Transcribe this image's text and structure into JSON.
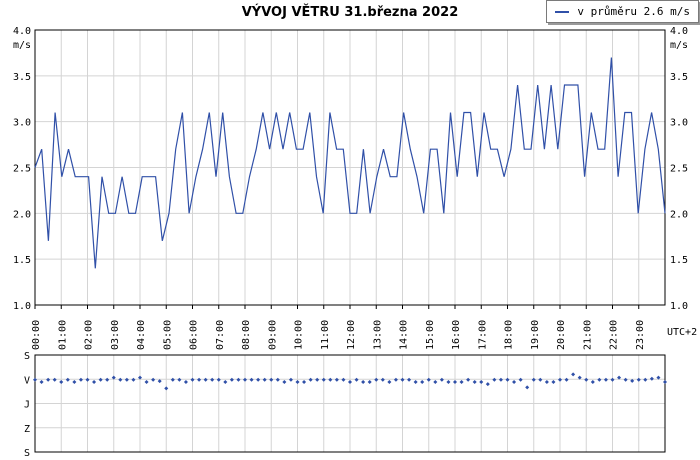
{
  "title": "VÝVOJ VĚTRU  31.března 2022",
  "legend": {
    "label": "v průměru 2.6 m/s",
    "color": "#3050a8"
  },
  "chart_data": [
    {
      "type": "line",
      "unit": "m/s",
      "ylim": [
        1.0,
        4.0
      ],
      "y_ticks": [
        "4.0",
        "3.5",
        "3.0",
        "2.5",
        "2.0",
        "1.5",
        "1.0"
      ],
      "x_ticks": [
        "00:00",
        "01:00",
        "02:00",
        "03:00",
        "04:00",
        "05:00",
        "06:00",
        "07:00",
        "08:00",
        "09:00",
        "10:00",
        "11:00",
        "12:00",
        "13:00",
        "14:00",
        "15:00",
        "16:00",
        "17:00",
        "18:00",
        "19:00",
        "20:00",
        "21:00",
        "22:00",
        "23:00"
      ],
      "timezone_label": "UTC+2",
      "grid": true,
      "series": [
        {
          "name": "v průměru 2.6 m/s",
          "color": "#3050a8",
          "values": [
            2.5,
            2.7,
            1.7,
            3.1,
            2.4,
            2.7,
            2.4,
            2.4,
            2.4,
            1.4,
            2.4,
            2.0,
            2.0,
            2.4,
            2.0,
            2.0,
            2.4,
            2.4,
            2.4,
            1.7,
            2.0,
            2.7,
            3.1,
            2.0,
            2.4,
            2.7,
            3.1,
            2.4,
            3.1,
            2.4,
            2.0,
            2.0,
            2.4,
            2.7,
            3.1,
            2.7,
            3.1,
            2.7,
            3.1,
            2.7,
            2.7,
            3.1,
            2.4,
            2.0,
            3.1,
            2.7,
            2.7,
            2.0,
            2.0,
            2.7,
            2.0,
            2.4,
            2.7,
            2.4,
            2.4,
            3.1,
            2.7,
            2.4,
            2.0,
            2.7,
            2.7,
            2.0,
            3.1,
            2.4,
            3.1,
            3.1,
            2.4,
            3.1,
            2.7,
            2.7,
            2.4,
            2.7,
            3.4,
            2.7,
            2.7,
            3.4,
            2.7,
            3.4,
            2.7,
            3.4,
            3.4,
            3.4,
            2.4,
            3.1,
            2.7,
            2.7,
            3.7,
            2.4,
            3.1,
            3.1,
            2.0,
            2.7,
            3.1,
            2.7,
            2.0
          ]
        }
      ]
    },
    {
      "type": "scatter",
      "y_ticks": [
        "S",
        "V",
        "J",
        "Z",
        "S"
      ],
      "grid": true,
      "series": [
        {
          "name": "",
          "color": "#3050a8",
          "values": [
            92,
            100,
            92,
            92,
            100,
            92,
            100,
            92,
            92,
            100,
            92,
            92,
            84,
            92,
            92,
            92,
            84,
            100,
            92,
            97,
            124,
            92,
            92,
            100,
            92,
            92,
            92,
            92,
            92,
            100,
            92,
            92,
            92,
            92,
            92,
            92,
            92,
            92,
            100,
            92,
            100,
            100,
            92,
            92,
            92,
            92,
            92,
            92,
            100,
            92,
            100,
            100,
            92,
            92,
            100,
            92,
            92,
            92,
            100,
            100,
            92,
            100,
            92,
            100,
            100,
            100,
            92,
            100,
            100,
            108,
            92,
            92,
            92,
            100,
            92,
            120,
            92,
            92,
            100,
            100,
            92,
            92,
            72,
            84,
            92,
            100,
            92,
            92,
            92,
            84,
            92,
            96,
            92,
            92,
            88,
            84,
            100
          ]
        }
      ]
    }
  ]
}
